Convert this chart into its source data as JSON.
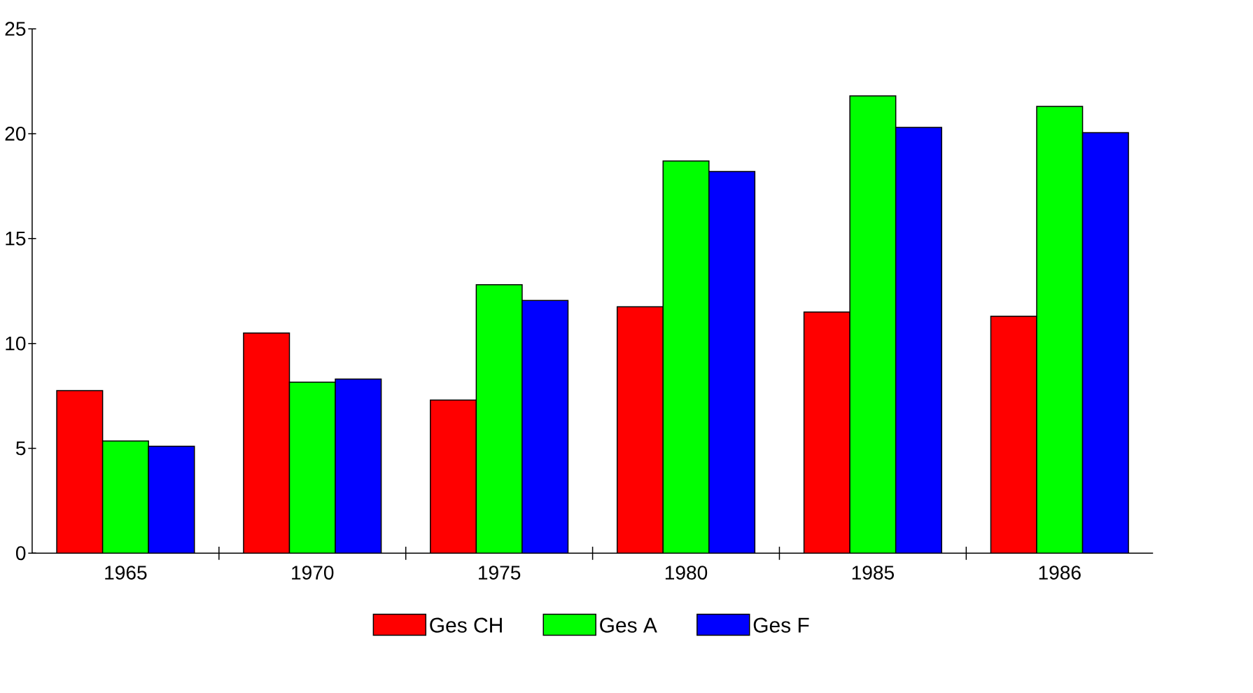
{
  "chart_data": {
    "type": "bar",
    "categories": [
      "1965",
      "1970",
      "1975",
      "1980",
      "1985",
      "1986"
    ],
    "series": [
      {
        "name": "Ges CH",
        "color": "#ff0000",
        "values": [
          7.75,
          10.5,
          7.3,
          11.75,
          11.5,
          11.3
        ]
      },
      {
        "name": "Ges A",
        "color": "#00ff00",
        "values": [
          5.35,
          8.15,
          12.8,
          18.7,
          21.8,
          21.3
        ]
      },
      {
        "name": "Ges F",
        "color": "#0000ff",
        "values": [
          5.1,
          8.3,
          12.05,
          18.2,
          20.3,
          20.05
        ]
      }
    ],
    "ylim": [
      0,
      25
    ],
    "yticks": [
      0,
      5,
      10,
      15,
      20,
      25
    ],
    "grid": false,
    "legend": "bottom"
  }
}
